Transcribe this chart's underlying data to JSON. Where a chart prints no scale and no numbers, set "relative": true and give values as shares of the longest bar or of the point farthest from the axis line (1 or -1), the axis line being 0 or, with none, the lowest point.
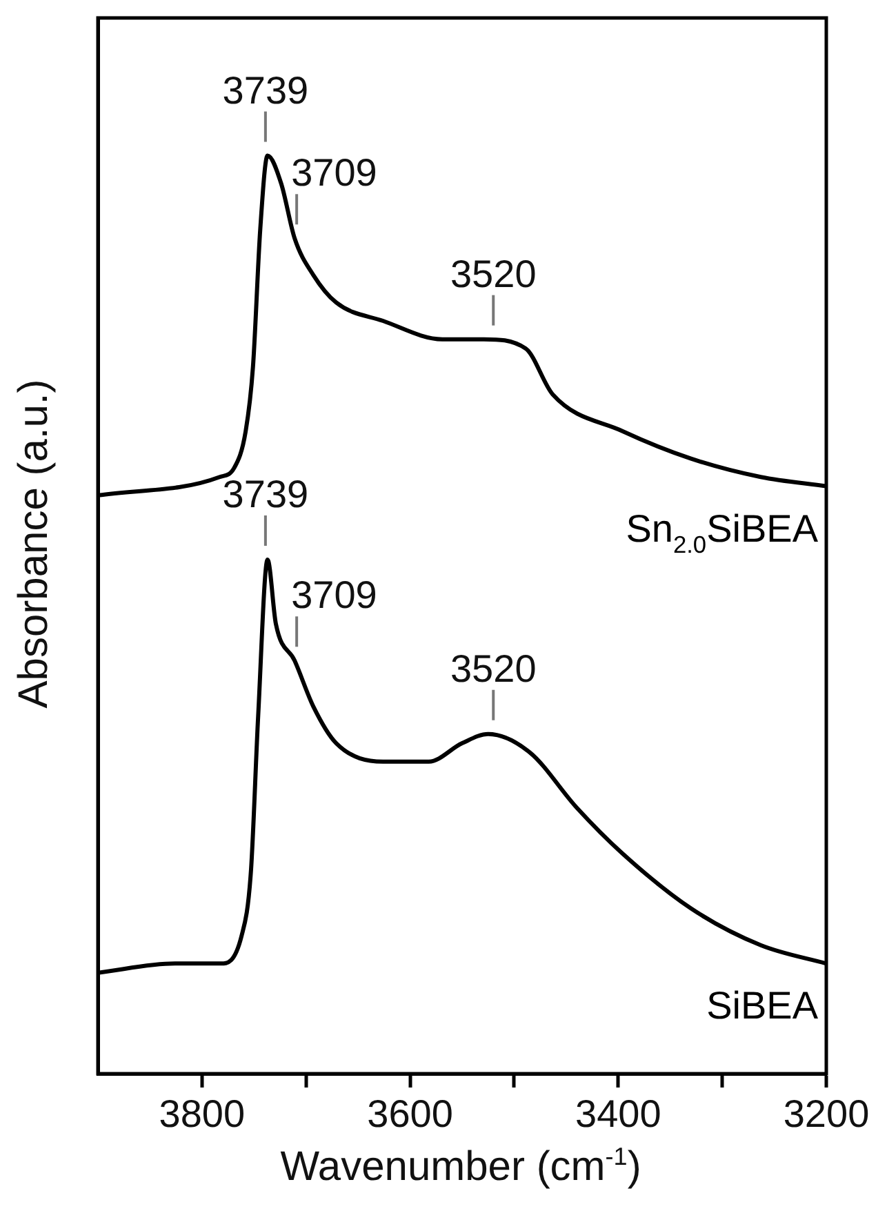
{
  "chart_data": {
    "type": "line",
    "relative": true,
    "xlabel": "Wavenumber (cm$^{-1}$)",
    "ylabel": "Absorbance (a.u.)",
    "xlim": [
      3900,
      3200
    ],
    "xticks": [
      3800,
      {
        "value": 3700,
        "label": null
      },
      3600,
      {
        "value": 3500,
        "label": null
      },
      3400,
      {
        "value": 3300,
        "label": null
      },
      3200
    ],
    "marker": "none",
    "line_style": "solid",
    "legend": false,
    "grid": false,
    "tick_labels": "x",
    "series": [
      {
        "name": "Sn$_{2.0}$SiBEA",
        "color": "#000000",
        "x": [
          3900,
          3783,
          3769,
          3758,
          3751,
          3744,
          3737,
          3724,
          3711,
          3693,
          3671,
          3626,
          3569,
          3529,
          3489,
          3463,
          3396,
          3330,
          3263,
          3200
        ],
        "values": [
          0.63,
          0.65,
          0.66,
          0.7,
          0.77,
          0.92,
          1.0,
          0.97,
          0.91,
          0.87,
          0.84,
          0.82,
          0.8,
          0.8,
          0.79,
          0.74,
          0.7,
          0.67,
          0.65,
          0.64
        ]
      },
      {
        "name": "SiBEA",
        "color": "#000000",
        "x": [
          3900,
          3826,
          3782,
          3762,
          3753,
          3746,
          3737,
          3729,
          3711,
          3693,
          3671,
          3626,
          3582,
          3550,
          3525,
          3485,
          3440,
          3396,
          3330,
          3263,
          3200
        ],
        "values": [
          0.11,
          0.12,
          0.12,
          0.15,
          0.22,
          0.39,
          0.56,
          0.49,
          0.45,
          0.4,
          0.36,
          0.34,
          0.34,
          0.36,
          0.37,
          0.35,
          0.29,
          0.24,
          0.18,
          0.14,
          0.12
        ]
      }
    ],
    "annotations": [
      {
        "text": "3739",
        "x": 3739,
        "y": 1.0
      },
      {
        "text": "3709",
        "x": 3709,
        "y": 0.91
      },
      {
        "text": "3520",
        "x": 3520,
        "y": 0.8
      },
      {
        "text": "3739",
        "x": 3739,
        "y": 0.56
      },
      {
        "text": "3709",
        "x": 3709,
        "y": 0.45
      },
      {
        "text": "3520",
        "x": 3520,
        "y": 0.37
      }
    ]
  }
}
